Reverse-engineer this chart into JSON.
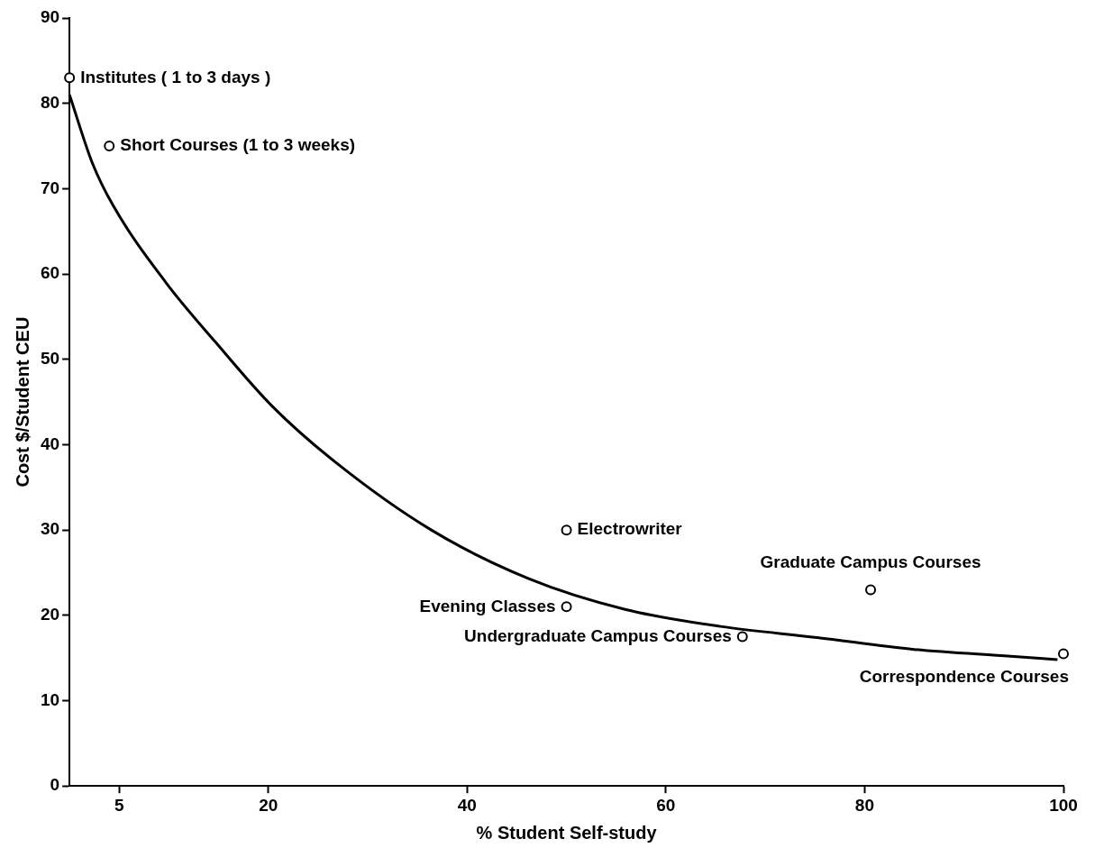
{
  "chart_data": {
    "type": "scatter",
    "xlabel": "% Student Self-study",
    "ylabel": "Cost $/Student CEU",
    "xlim": [
      0,
      100
    ],
    "xticks": [
      5,
      20,
      40,
      60,
      80,
      100
    ],
    "ylim": [
      0,
      90
    ],
    "yticks": [
      0,
      10,
      20,
      30,
      40,
      50,
      60,
      70,
      80,
      90
    ],
    "grid": false,
    "legend": false,
    "marker": "circle",
    "series": [
      {
        "color": "#000000",
        "x": [
          0,
          4,
          50,
          50,
          67.7,
          80.6,
          100
        ],
        "values": [
          83,
          75,
          30,
          21,
          17.5,
          23,
          15.5
        ]
      },
      {
        "type": "line",
        "color": "#000000",
        "marker": "none",
        "line_style": "solid",
        "x": [
          0,
          2.3,
          4.4,
          9.7,
          14.7,
          20.4,
          26.7,
          36.4,
          46.2,
          55.9,
          65.5,
          75.2,
          85,
          94.7,
          99.4
        ],
        "values": [
          81,
          73,
          68,
          59,
          52,
          44.5,
          38,
          30,
          24.3,
          20.7,
          18.7,
          17.4,
          16,
          15.2,
          14.8
        ]
      }
    ],
    "annotations": [
      {
        "text": "Institutes ( 1 to 3 days )",
        "x": 0,
        "y": 83
      },
      {
        "text": "Short Courses (1 to 3 weeks)",
        "x": 4,
        "y": 75
      },
      {
        "text": "Electrowriter",
        "x": 50,
        "y": 30
      },
      {
        "text": "Evening Classes",
        "x": 50,
        "y": 21
      },
      {
        "text": "Undergraduate Campus Courses",
        "x": 67.7,
        "y": 17.5
      },
      {
        "text": "Graduate Campus Courses",
        "x": 80.6,
        "y": 23
      },
      {
        "text": "Correspondence Courses",
        "x": 100,
        "y": 15.5
      }
    ]
  }
}
